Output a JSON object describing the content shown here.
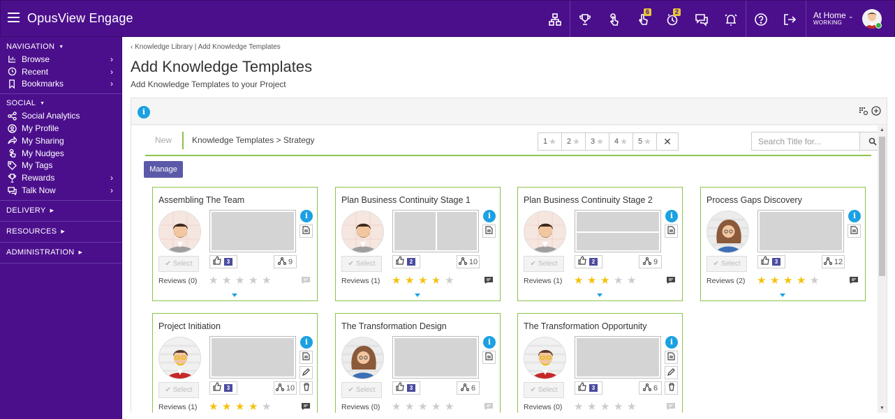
{
  "header": {
    "app_title": "OpusView Engage",
    "badges": {
      "nudges": "6",
      "timers": "2"
    },
    "user": {
      "location": "At Home",
      "status": "WORKING"
    }
  },
  "sidebar": {
    "navigation": {
      "title": "NAVIGATION",
      "items": [
        {
          "label": "Browse",
          "icon": "browse-icon",
          "chevron": true
        },
        {
          "label": "Recent",
          "icon": "history-icon",
          "chevron": true
        },
        {
          "label": "Bookmarks",
          "icon": "bookmark-icon",
          "chevron": true
        }
      ]
    },
    "social": {
      "title": "SOCIAL",
      "items": [
        {
          "label": "Social Analytics",
          "icon": "analytics-icon"
        },
        {
          "label": "My Profile",
          "icon": "profile-icon"
        },
        {
          "label": "My Sharing",
          "icon": "share-icon"
        },
        {
          "label": "My Nudges",
          "icon": "nudge-icon"
        },
        {
          "label": "My Tags",
          "icon": "tag-icon"
        },
        {
          "label": "Rewards",
          "icon": "trophy-icon",
          "chevron": true
        },
        {
          "label": "Talk Now",
          "icon": "chat-icon",
          "chevron": true
        }
      ]
    },
    "delivery": "DELIVERY",
    "resources": "RESOURCES",
    "administration": "ADMINISTRATION"
  },
  "breadcrumb": {
    "parent": "Knowledge Library",
    "separator": "|",
    "current": "Add Knowledge Templates"
  },
  "page": {
    "title": "Add Knowledge Templates",
    "subtitle": "Add Knowledge Templates to your Project"
  },
  "tabs": {
    "new": "New",
    "path": "Knowledge Templates > Strategy"
  },
  "star_filter": [
    "1",
    "2",
    "3",
    "4",
    "5"
  ],
  "search": {
    "placeholder": "Search Title for...",
    "value": ""
  },
  "manage_label": "Manage",
  "select_label": "Select",
  "cards": [
    {
      "title": "Assembling The Team",
      "avatar": "man-beard",
      "thumb": "plain",
      "likes": "3",
      "shares": "9",
      "reviews": "Reviews (0)",
      "rating": 0,
      "editable": false,
      "expand": true
    },
    {
      "title": "Plan Business Continuity Stage 1",
      "avatar": "man-beard",
      "thumb": "vsplit",
      "likes": "2",
      "shares": "10",
      "reviews": "Reviews (1)",
      "rating": 3.5,
      "editable": false,
      "expand": true
    },
    {
      "title": "Plan Business Continuity Stage 2",
      "avatar": "man-beard",
      "thumb": "hsplit",
      "likes": "2",
      "shares": "9",
      "reviews": "Reviews (1)",
      "rating": 3,
      "editable": false,
      "expand": true
    },
    {
      "title": "Process Gaps Discovery",
      "avatar": "woman",
      "thumb": "plain",
      "likes": "3",
      "shares": "12",
      "reviews": "Reviews (2)",
      "rating": 4,
      "editable": false,
      "expand": true
    },
    {
      "title": "Project Initiation",
      "avatar": "man-glasses",
      "thumb": "plain",
      "likes": "3",
      "shares": "10",
      "reviews": "Reviews (1)",
      "rating": 4,
      "editable": true,
      "expand": false
    },
    {
      "title": "The Transformation Design",
      "avatar": "woman",
      "thumb": "plain",
      "likes": "3",
      "shares": "6",
      "reviews": "Reviews (0)",
      "rating": 0,
      "editable": false,
      "expand": false
    },
    {
      "title": "The Transformation Opportunity",
      "avatar": "man-glasses",
      "thumb": "plain",
      "likes": "3",
      "shares": "6",
      "reviews": "Reviews (0)",
      "rating": 0,
      "editable": true,
      "expand": false
    }
  ],
  "colors": {
    "brand": "#4b0f8c",
    "accent": "#8bc34a",
    "info": "#1ba1e2",
    "star": "#f4c20d",
    "manage": "#5c59a8"
  }
}
